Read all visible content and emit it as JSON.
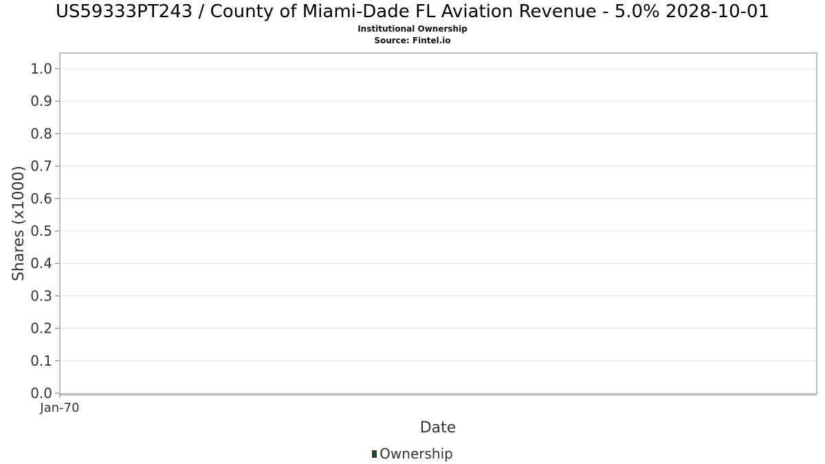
{
  "chart_data": {
    "type": "line",
    "title": "US59333PT243 / County of Miami-Dade FL Aviation Revenue - 5.0% 2028-10-01",
    "subtitle": "Institutional Ownership",
    "source": "Source: Fintel.io",
    "xlabel": "Date",
    "ylabel": "Shares (x1000)",
    "x_ticks": [
      "Jan-70"
    ],
    "y_ticks": [
      "0.0",
      "0.1",
      "0.2",
      "0.3",
      "0.4",
      "0.5",
      "0.6",
      "0.7",
      "0.8",
      "0.9",
      "1.0"
    ],
    "ylim": [
      0,
      1.05
    ],
    "grid": true,
    "legend_position": "bottom-center",
    "series": [
      {
        "name": "Ownership",
        "color": "#1b4d2b",
        "x": [],
        "values": []
      }
    ]
  }
}
